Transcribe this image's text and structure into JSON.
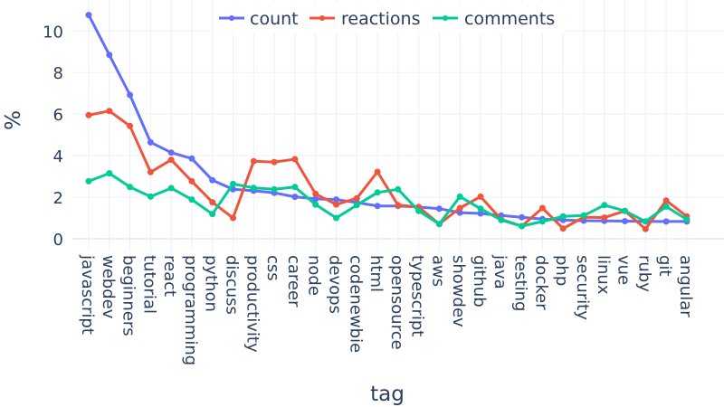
{
  "chart_data": {
    "type": "line",
    "title": "",
    "xlabel": "tag",
    "ylabel": "%",
    "ylim": [
      0,
      11
    ],
    "yticks": [
      0,
      2,
      4,
      6,
      8,
      10
    ],
    "grid": true,
    "legend_position": "top-center",
    "categories": [
      "javascript",
      "webdev",
      "beginners",
      "tutorial",
      "react",
      "programming",
      "python",
      "discuss",
      "productivity",
      "css",
      "career",
      "node",
      "devops",
      "codenewbie",
      "html",
      "opensource",
      "typescript",
      "aws",
      "showdev",
      "github",
      "java",
      "testing",
      "docker",
      "php",
      "security",
      "linux",
      "vue",
      "ruby",
      "git",
      "angular"
    ],
    "series": [
      {
        "name": "count",
        "color": "#636efa",
        "values": [
          10.77,
          8.85,
          6.92,
          4.64,
          4.15,
          3.86,
          2.82,
          2.38,
          2.31,
          2.21,
          2.02,
          1.92,
          1.89,
          1.74,
          1.58,
          1.58,
          1.53,
          1.45,
          1.26,
          1.22,
          1.12,
          1.03,
          0.95,
          0.9,
          0.87,
          0.86,
          0.85,
          0.83,
          0.83,
          0.83
        ]
      },
      {
        "name": "reactions",
        "color": "#ef553b",
        "values": [
          5.95,
          6.15,
          5.43,
          3.21,
          3.8,
          2.77,
          1.76,
          1.0,
          3.73,
          3.69,
          3.83,
          2.16,
          1.65,
          1.95,
          3.22,
          1.62,
          1.53,
          0.71,
          1.48,
          2.03,
          0.93,
          0.61,
          1.48,
          0.49,
          1.04,
          1.02,
          1.34,
          0.47,
          1.84,
          1.08
        ]
      },
      {
        "name": "comments",
        "color": "#00cc96",
        "values": [
          2.77,
          3.15,
          2.49,
          2.03,
          2.44,
          1.89,
          1.19,
          2.64,
          2.45,
          2.38,
          2.49,
          1.65,
          1.0,
          1.62,
          2.23,
          2.38,
          1.34,
          0.71,
          2.03,
          1.45,
          0.9,
          0.61,
          0.83,
          1.08,
          1.12,
          1.62,
          1.34,
          0.83,
          1.55,
          0.93
        ]
      }
    ]
  },
  "legend": {
    "items": [
      {
        "label": "count",
        "color": "#636efa"
      },
      {
        "label": "reactions",
        "color": "#ef553b"
      },
      {
        "label": "comments",
        "color": "#00cc96"
      }
    ]
  },
  "axes": {
    "x_title": "tag",
    "y_title": "%"
  }
}
